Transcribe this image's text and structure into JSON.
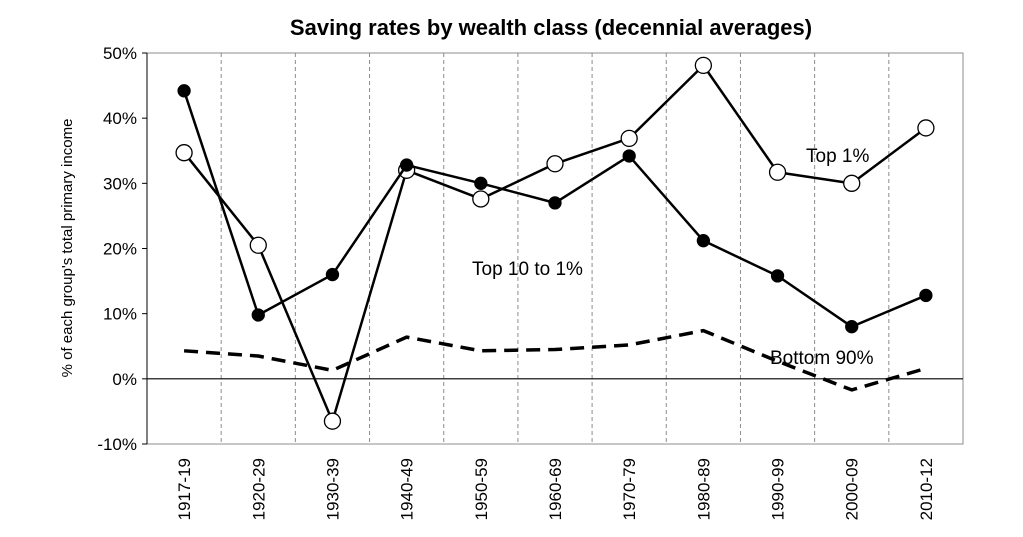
{
  "chart_data": {
    "type": "line",
    "title": "Saving rates by wealth class (decennial averages)",
    "xlabel": "",
    "ylabel": "% of each group's total primary income",
    "categories": [
      "1917-19",
      "1920-29",
      "1930-39",
      "1940-49",
      "1950-59",
      "1960-69",
      "1970-79",
      "1980-89",
      "1990-99",
      "2000-09",
      "2010-12"
    ],
    "ylim": [
      -10,
      50
    ],
    "yticks": [
      -10,
      0,
      10,
      20,
      30,
      40,
      50
    ],
    "ytick_labels": [
      "-10%",
      "0%",
      "10%",
      "20%",
      "30%",
      "40%",
      "50%"
    ],
    "grid": "vertical dashed",
    "series": [
      {
        "name": "Top 1%",
        "label": "Top 1%",
        "values": [
          34.7,
          20.5,
          -6.5,
          32.0,
          27.6,
          33.0,
          36.9,
          48.1,
          31.7,
          30.0,
          38.5
        ],
        "marker": "open-circle",
        "color": "#000000",
        "line": "solid"
      },
      {
        "name": "Top 10 to 1%",
        "label": "Top 10 to 1%",
        "values": [
          44.2,
          9.8,
          16.0,
          32.8,
          30.0,
          27.0,
          34.2,
          21.2,
          15.8,
          8.0,
          12.8
        ],
        "marker": "filled-circle",
        "color": "#000000",
        "line": "solid"
      },
      {
        "name": "Bottom 90%",
        "label": "Bottom 90%",
        "values": [
          4.3,
          3.5,
          1.3,
          6.4,
          4.3,
          4.5,
          5.2,
          7.4,
          2.7,
          -1.7,
          1.6
        ],
        "marker": "none",
        "color": "#000000",
        "line": "dashed"
      }
    ]
  }
}
